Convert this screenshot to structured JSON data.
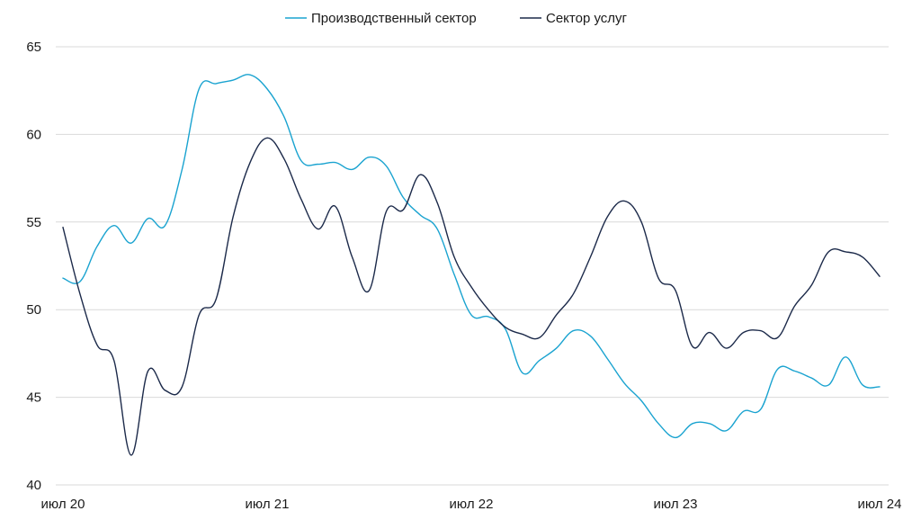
{
  "chart_data": {
    "type": "line",
    "title": "",
    "xlabel": "",
    "ylabel": "",
    "ylim": [
      40,
      65
    ],
    "yticks": [
      "40",
      "45",
      "50",
      "55",
      "60",
      "65"
    ],
    "xticks": [
      "июл 20",
      "июл 21",
      "июл 22",
      "июл 23",
      "июл 24"
    ],
    "grid": "horizontal",
    "legend": "top-center",
    "x": [
      "2020-07",
      "2020-08",
      "2020-09",
      "2020-10",
      "2020-11",
      "2020-12",
      "2021-01",
      "2021-02",
      "2021-03",
      "2021-04",
      "2021-05",
      "2021-06",
      "2021-07",
      "2021-08",
      "2021-09",
      "2021-10",
      "2021-11",
      "2021-12",
      "2022-01",
      "2022-02",
      "2022-03",
      "2022-04",
      "2022-05",
      "2022-06",
      "2022-07",
      "2022-08",
      "2022-09",
      "2022-10",
      "2022-11",
      "2022-12",
      "2023-01",
      "2023-02",
      "2023-03",
      "2023-04",
      "2023-05",
      "2023-06",
      "2023-07",
      "2023-08",
      "2023-09",
      "2023-10",
      "2023-11",
      "2023-12",
      "2024-01",
      "2024-02",
      "2024-03",
      "2024-04",
      "2024-05",
      "2024-06",
      "2024-07"
    ],
    "series": [
      {
        "name": "Производственный сектор",
        "color": "#1aa3d0",
        "values": [
          51.8,
          51.6,
          53.6,
          54.8,
          53.8,
          55.2,
          54.8,
          58.0,
          62.6,
          62.9,
          63.1,
          63.4,
          62.6,
          61.0,
          58.5,
          58.3,
          58.4,
          58.0,
          58.7,
          58.2,
          56.4,
          55.4,
          54.6,
          52.0,
          49.7,
          49.6,
          48.9,
          46.4,
          47.1,
          47.8,
          48.8,
          48.5,
          47.2,
          45.8,
          44.8,
          43.5,
          42.7,
          43.5,
          43.5,
          43.1,
          44.2,
          44.3,
          46.6,
          46.5,
          46.1,
          45.7,
          47.3,
          45.7,
          45.6
        ]
      },
      {
        "name": "Сектор услуг",
        "color": "#1c2a4a",
        "values": [
          54.7,
          50.9,
          48.0,
          47.1,
          41.7,
          46.5,
          45.4,
          45.6,
          49.7,
          50.6,
          55.3,
          58.4,
          59.8,
          58.6,
          56.3,
          54.6,
          55.9,
          53.0,
          51.1,
          55.6,
          55.7,
          57.7,
          56.1,
          53.0,
          51.3,
          50.0,
          49.0,
          48.6,
          48.4,
          49.7,
          50.9,
          53.0,
          55.3,
          56.2,
          55.0,
          51.8,
          51.1,
          47.9,
          48.7,
          47.8,
          48.7,
          48.8,
          48.4,
          50.2,
          51.4,
          53.3,
          53.3,
          53.0,
          51.9
        ]
      }
    ]
  }
}
